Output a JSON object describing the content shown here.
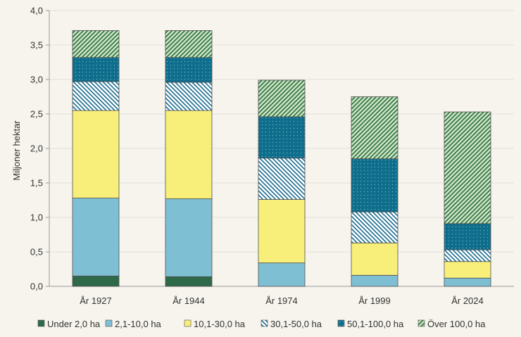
{
  "chart_data": {
    "type": "bar",
    "stacked": true,
    "ylabel": "Miljoner hektar",
    "xlabel": "",
    "ylim": [
      0,
      4.0
    ],
    "yticks": [
      "0,0",
      "0,5",
      "1,0",
      "1,5",
      "2,0",
      "2,5",
      "3,0",
      "3,5",
      "4,0"
    ],
    "categories": [
      "År 1927",
      "År 1944",
      "År 1974",
      "År 1999",
      "År 2024"
    ],
    "legend_position": "bottom",
    "grid": "horizontal",
    "series": [
      {
        "name": "Under 2,0 ha",
        "color": "#2e6a4a",
        "pattern": "solid",
        "values": [
          0.15,
          0.14,
          0.0,
          0.0,
          0.0
        ]
      },
      {
        "name": "2,1-10,0 ha",
        "color": "#7fbfd4",
        "pattern": "solid",
        "values": [
          1.13,
          1.13,
          0.34,
          0.16,
          0.12
        ]
      },
      {
        "name": "10,1-30,0 ha",
        "color": "#f8ef7a",
        "pattern": "solid",
        "values": [
          1.27,
          1.28,
          0.92,
          0.47,
          0.24
        ]
      },
      {
        "name": "30,1-50,0 ha",
        "color": "#1a6b8e",
        "pattern": "diagonal-back",
        "values": [
          0.42,
          0.41,
          0.6,
          0.45,
          0.17
        ]
      },
      {
        "name": "50,1-100,0 ha",
        "color": "#0f6e8c",
        "pattern": "dots",
        "values": [
          0.35,
          0.36,
          0.6,
          0.77,
          0.38
        ]
      },
      {
        "name": "Över 100,0 ha",
        "color": "#2e6a4a",
        "pattern": "diagonal-forward",
        "values": [
          0.39,
          0.39,
          0.53,
          0.9,
          1.62
        ]
      }
    ]
  }
}
